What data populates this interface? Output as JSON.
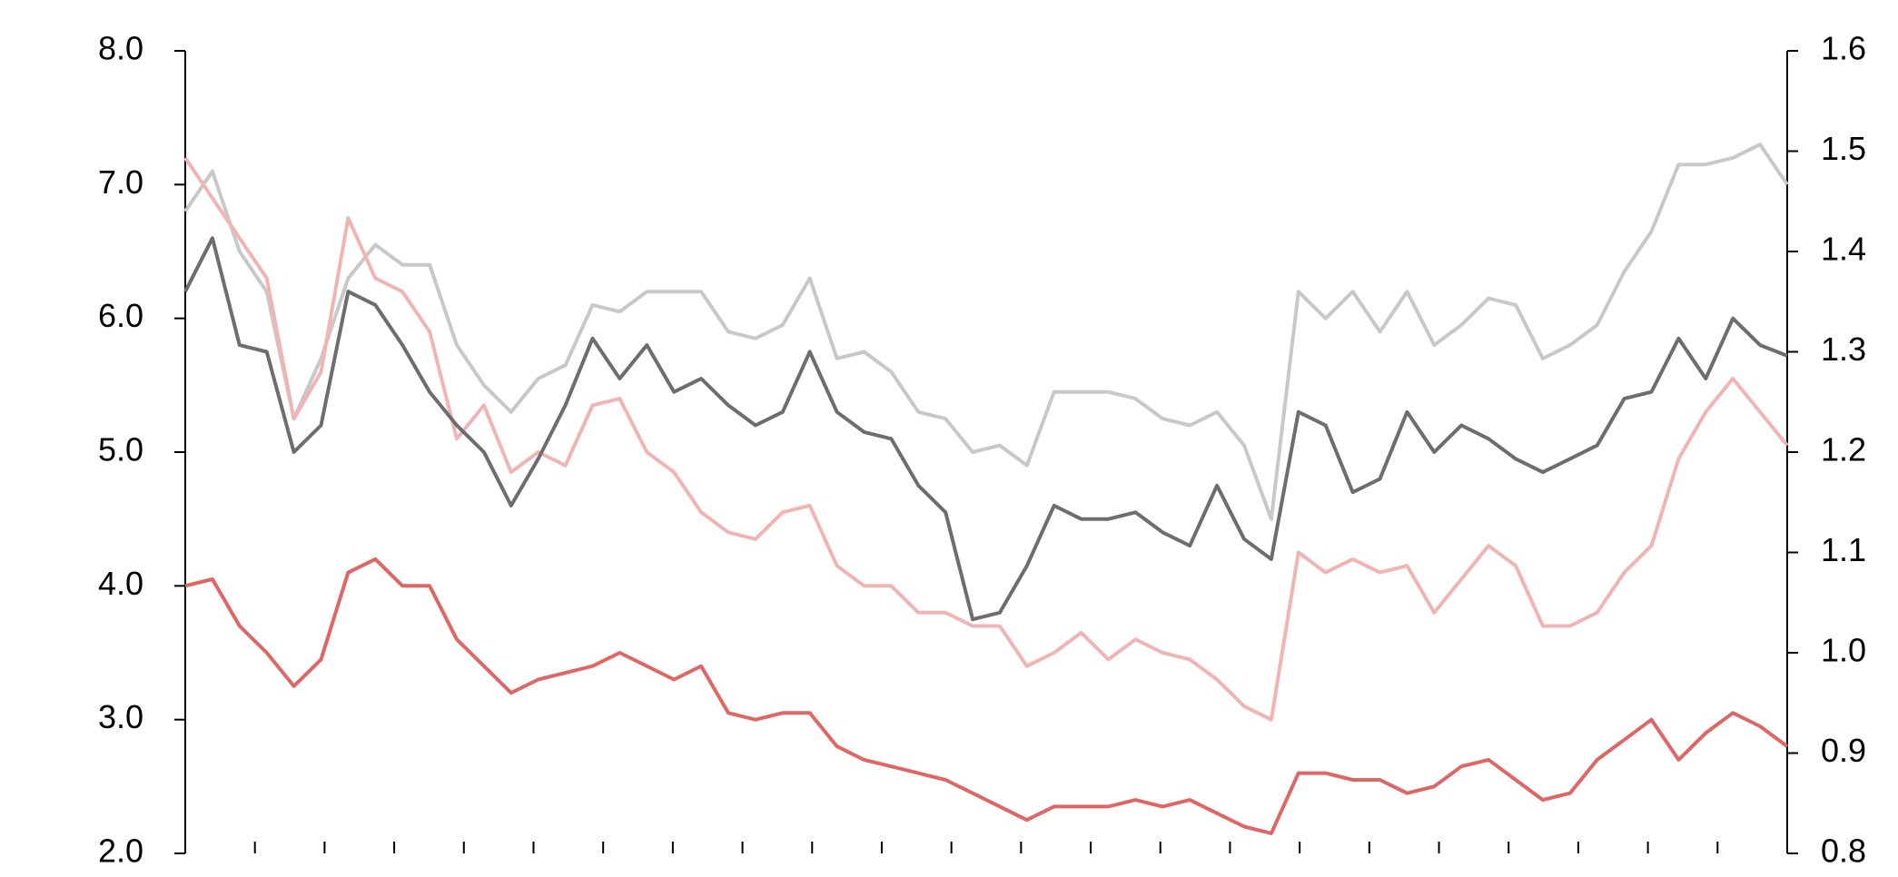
{
  "chart_data": {
    "type": "line",
    "ylim": [
      2,
      8
    ],
    "yticks": [
      {
        "value": 2,
        "label": "2.0"
      },
      {
        "value": 3,
        "label": "3.0"
      },
      {
        "value": 4,
        "label": "4.0"
      },
      {
        "value": 5,
        "label": "5.0"
      },
      {
        "value": 6,
        "label": "6.0"
      },
      {
        "value": 7,
        "label": "7.0"
      },
      {
        "value": 8,
        "label": "8.0"
      }
    ],
    "y2lim": [
      0.8,
      1.6
    ],
    "y2ticks": [
      0.8,
      0.9,
      {
        "value": 1,
        "label": "1.0"
      },
      1.1,
      1.2,
      1.3,
      1.4,
      1.5,
      1.6
    ],
    "series": [
      {
        "color": "#c8c8c8",
        "values": [
          6.8,
          7.1,
          6.5,
          6.2,
          5.25,
          5.7,
          6.3,
          6.55,
          6.4,
          6.4,
          5.8,
          5.5,
          5.3,
          5.55,
          5.65,
          6.1,
          6.05,
          6.2,
          6.2,
          6.2,
          5.9,
          5.85,
          5.95,
          6.3,
          5.7,
          5.75,
          5.6,
          5.3,
          5.25,
          5.0,
          5.05,
          4.9,
          5.45,
          5.45,
          5.45,
          5.4,
          5.25,
          5.2,
          5.3,
          5.05,
          4.5,
          6.2,
          6.0,
          6.2,
          5.9,
          6.2,
          5.8,
          5.95,
          6.15,
          6.1,
          5.7,
          5.8,
          5.95,
          6.35,
          6.65,
          7.15,
          7.15,
          7.2,
          7.3,
          7.0
        ]
      },
      {
        "color": "#f0b4b4",
        "values": [
          7.2,
          6.9,
          6.6,
          6.3,
          5.25,
          5.6,
          6.75,
          6.3,
          6.2,
          5.9,
          5.1,
          5.35,
          4.85,
          5.0,
          4.9,
          5.35,
          5.4,
          5.0,
          4.85,
          4.55,
          4.4,
          4.35,
          4.55,
          4.6,
          4.15,
          4.0,
          4.0,
          3.8,
          3.8,
          3.7,
          3.7,
          3.4,
          3.5,
          3.65,
          3.45,
          3.6,
          3.5,
          3.45,
          3.3,
          3.1,
          3.0,
          4.25,
          4.1,
          4.2,
          4.1,
          4.15,
          3.8,
          4.05,
          4.3,
          4.15,
          3.7,
          3.7,
          3.8,
          4.1,
          4.3,
          4.95,
          5.3,
          5.55,
          5.3,
          5.05
        ]
      },
      {
        "color": "#6d6d6d",
        "values": [
          6.2,
          6.6,
          5.8,
          5.75,
          5.0,
          5.2,
          6.2,
          6.1,
          5.8,
          5.45,
          5.2,
          5.0,
          4.6,
          4.95,
          5.35,
          5.85,
          5.55,
          5.8,
          5.45,
          5.55,
          5.35,
          5.2,
          5.3,
          5.75,
          5.3,
          5.15,
          5.1,
          4.75,
          4.55,
          3.75,
          3.8,
          4.15,
          4.6,
          4.5,
          4.5,
          4.55,
          4.4,
          4.3,
          4.75,
          4.35,
          4.2,
          5.3,
          5.2,
          4.7,
          4.8,
          5.3,
          5.0,
          5.2,
          5.1,
          4.95,
          4.85,
          4.95,
          5.05,
          5.4,
          5.45,
          5.85,
          5.55,
          6.0,
          5.8,
          5.72
        ]
      },
      {
        "color": "#e06666",
        "values": [
          4.0,
          4.05,
          3.7,
          3.5,
          3.25,
          3.45,
          4.1,
          4.2,
          4.0,
          4.0,
          3.6,
          3.4,
          3.2,
          3.3,
          3.35,
          3.4,
          3.5,
          3.4,
          3.3,
          3.4,
          3.05,
          3.0,
          3.05,
          3.05,
          2.8,
          2.7,
          2.65,
          2.6,
          2.55,
          2.45,
          2.35,
          2.25,
          2.35,
          2.35,
          2.35,
          2.4,
          2.35,
          2.4,
          2.3,
          2.2,
          2.15,
          2.6,
          2.6,
          2.55,
          2.55,
          2.45,
          2.5,
          2.65,
          2.7,
          2.55,
          2.4,
          2.45,
          2.7,
          2.85,
          3.0,
          2.7,
          2.9,
          3.05,
          2.95,
          2.8
        ]
      }
    ]
  }
}
